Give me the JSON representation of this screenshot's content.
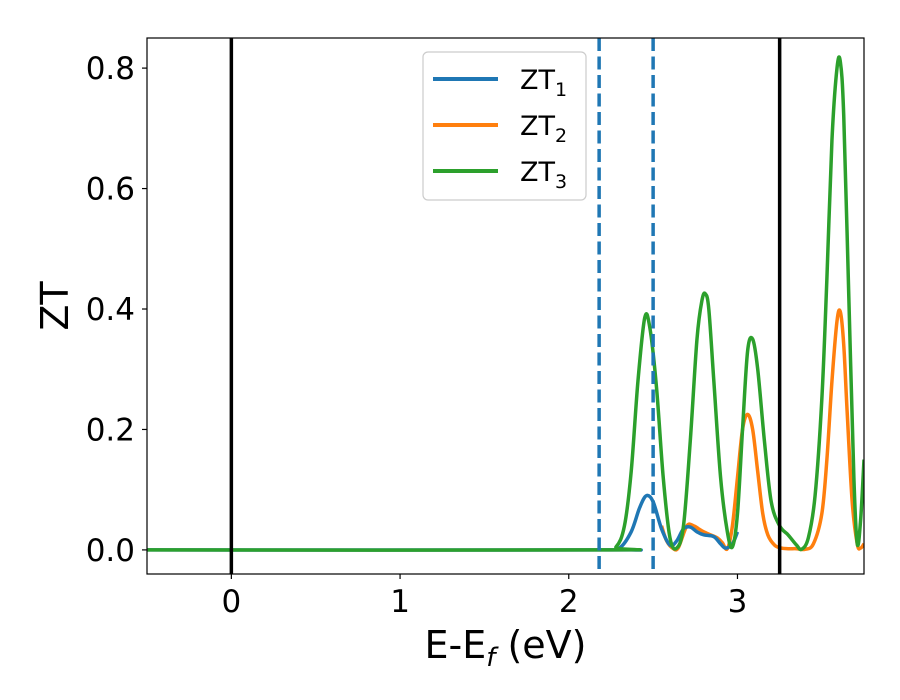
{
  "chart_data": {
    "type": "line",
    "title": "",
    "xlabel": "E-E",
    "xlabel_sub": "f",
    "xlabel_unit": " (eV)",
    "ylabel": "ZT",
    "xlim": [
      -0.5,
      3.75
    ],
    "ylim": [
      -0.04,
      0.85
    ],
    "xticks": [
      0,
      1,
      2,
      3
    ],
    "yticks": [
      0.0,
      0.2,
      0.4,
      0.6,
      0.8
    ],
    "xtick_labels": [
      "0",
      "1",
      "2",
      "3"
    ],
    "ytick_labels": [
      "0.0",
      "0.2",
      "0.4",
      "0.6",
      "0.8"
    ],
    "grid": false,
    "legend_position": "top-center",
    "vlines": [
      {
        "x": 0.0,
        "style": "solid",
        "color": "#000000"
      },
      {
        "x": 3.25,
        "style": "solid",
        "color": "#000000"
      },
      {
        "x": 2.18,
        "style": "dashed",
        "color": "#1f77b4"
      },
      {
        "x": 2.5,
        "style": "dashed",
        "color": "#1f77b4"
      }
    ],
    "series": [
      {
        "name": "ZT",
        "sub": "1",
        "color": "#1f77b4",
        "x": [
          -0.5,
          2.2,
          2.3,
          2.37,
          2.42,
          2.46,
          2.5,
          2.55,
          2.6,
          2.64,
          2.68,
          2.72,
          2.76,
          2.8,
          2.86,
          2.9,
          2.93,
          2.97,
          3.0
        ],
        "y": [
          0,
          0,
          0.003,
          0.03,
          0.07,
          0.09,
          0.08,
          0.035,
          0.008,
          0.015,
          0.035,
          0.038,
          0.03,
          0.025,
          0.022,
          0.01,
          0.003,
          0.01,
          0.03
        ]
      },
      {
        "name": "ZT",
        "sub": "2",
        "color": "#ff7f0e",
        "x": [
          2.55,
          2.58,
          2.62,
          2.65,
          2.7,
          2.74,
          2.77,
          2.8,
          2.84,
          2.88,
          2.91,
          2.94,
          2.97,
          3.0,
          3.03,
          3.06,
          3.09,
          3.12,
          3.15,
          3.18,
          3.22,
          3.26,
          3.3,
          3.35,
          3.4,
          3.45,
          3.5,
          3.53,
          3.56,
          3.59,
          3.61,
          3.63,
          3.65,
          3.68,
          3.71,
          3.73,
          3.75
        ],
        "y": [
          0.04,
          0.015,
          0.002,
          0.004,
          0.04,
          0.04,
          0.035,
          0.03,
          0.025,
          0.02,
          0.012,
          0.002,
          0.04,
          0.12,
          0.2,
          0.225,
          0.2,
          0.13,
          0.06,
          0.025,
          0.008,
          0.003,
          0.002,
          0.002,
          0.001,
          0.01,
          0.06,
          0.15,
          0.28,
          0.38,
          0.395,
          0.34,
          0.23,
          0.08,
          0.01,
          0.003,
          0.01
        ]
      },
      {
        "name": "ZT",
        "sub": "3",
        "color": "#2ca02c",
        "x": [
          -0.5,
          2.2,
          2.28,
          2.33,
          2.37,
          2.41,
          2.45,
          2.48,
          2.52,
          2.56,
          2.6,
          2.64,
          2.68,
          2.72,
          2.76,
          2.79,
          2.81,
          2.83,
          2.86,
          2.9,
          2.94,
          2.97,
          3.0,
          3.03,
          3.06,
          3.09,
          3.12,
          3.16,
          3.2,
          3.25,
          3.3,
          3.35,
          3.38,
          3.42,
          3.46,
          3.5,
          3.53,
          3.56,
          3.59,
          3.61,
          3.63,
          3.66,
          3.69,
          3.71,
          3.73,
          3.75
        ],
        "y": [
          0,
          0,
          0.005,
          0.04,
          0.13,
          0.28,
          0.385,
          0.37,
          0.27,
          0.12,
          0.02,
          0.003,
          0.04,
          0.18,
          0.35,
          0.415,
          0.425,
          0.4,
          0.28,
          0.12,
          0.03,
          0.005,
          0.06,
          0.2,
          0.33,
          0.35,
          0.3,
          0.18,
          0.08,
          0.04,
          0.025,
          0.008,
          0.001,
          0.02,
          0.09,
          0.25,
          0.45,
          0.68,
          0.8,
          0.81,
          0.72,
          0.42,
          0.12,
          0.01,
          0.05,
          0.15
        ]
      }
    ]
  }
}
